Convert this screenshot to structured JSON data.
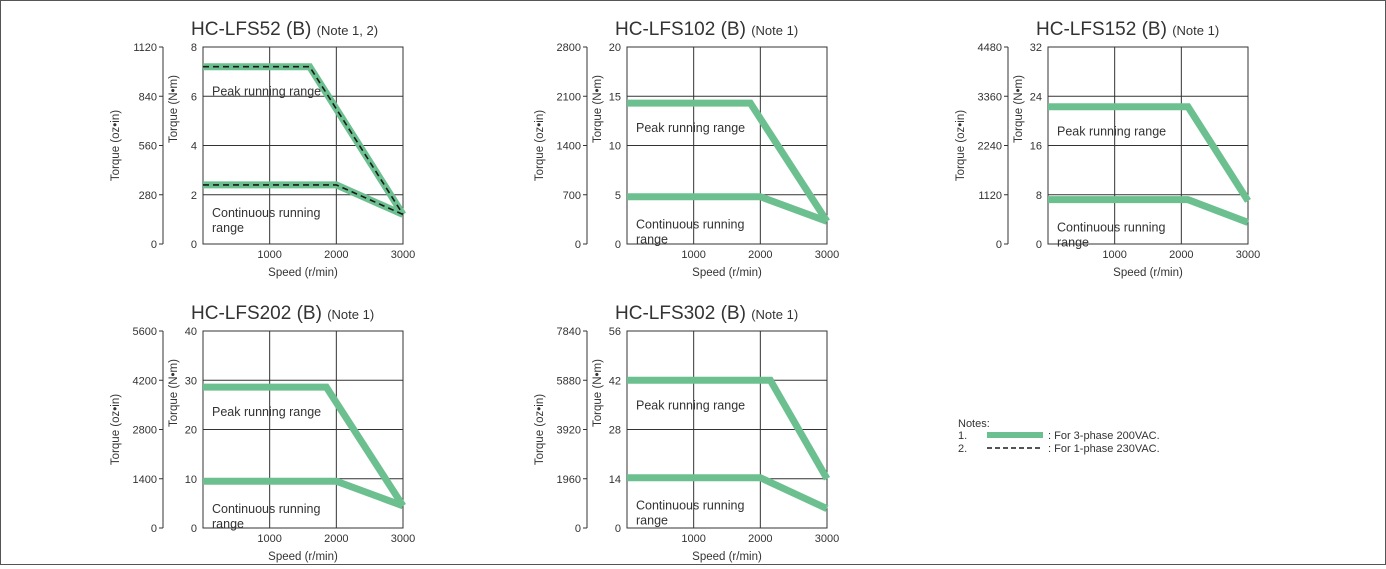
{
  "page": {
    "notes_title": "Notes:",
    "legend": [
      {
        "num": "1.",
        "style": "solid",
        "text": ": For 3-phase 200VAC."
      },
      {
        "num": "2.",
        "style": "dashed",
        "text": ": For 1-phase 230VAC."
      }
    ]
  },
  "colors": {
    "green": "#6cc08f",
    "dashed": "#1a1a1a",
    "grid": "#333333",
    "text": "#333333"
  },
  "chart_data": [
    {
      "type": "line",
      "title": "HC-LFS52 (B)",
      "note": "(Note 1, 2)",
      "xlabel": "Speed (r/min)",
      "ylabel_left": "Torque (oz•in)",
      "ylabel_right": "Torque (N•m)",
      "xlim": [
        0,
        3000
      ],
      "x_ticks": [
        1000,
        2000,
        3000
      ],
      "ylim_nm": [
        0,
        8
      ],
      "y_ticks_nm": [
        0,
        2,
        4,
        6,
        8
      ],
      "y_ticks_ozin": [
        0,
        280,
        560,
        840,
        1120
      ],
      "grid": true,
      "region_labels": {
        "peak": "Peak running range",
        "continuous": [
          "Continuous running",
          "range"
        ]
      },
      "series": [
        {
          "style": "solid",
          "x": [
            0,
            1600,
            3000
          ],
          "y": [
            7.2,
            7.2,
            1.2
          ]
        },
        {
          "style": "solid",
          "x": [
            0,
            2000,
            3000
          ],
          "y": [
            2.4,
            2.4,
            1.2
          ]
        },
        {
          "style": "dashed",
          "x": [
            0,
            1600,
            3000
          ],
          "y": [
            7.2,
            7.2,
            1.2
          ]
        },
        {
          "style": "dashed",
          "x": [
            0,
            2000,
            3000
          ],
          "y": [
            2.4,
            2.4,
            1.2
          ]
        }
      ]
    },
    {
      "type": "line",
      "title": "HC-LFS102 (B)",
      "note": "(Note 1)",
      "xlabel": "Speed (r/min)",
      "ylabel_left": "Torque (oz•in)",
      "ylabel_right": "Torque (N•m)",
      "xlim": [
        0,
        3000
      ],
      "x_ticks": [
        1000,
        2000,
        3000
      ],
      "ylim_nm": [
        0,
        20
      ],
      "y_ticks_nm": [
        0,
        5,
        10,
        15,
        20
      ],
      "y_ticks_ozin": [
        0,
        700,
        1400,
        2100,
        2800
      ],
      "grid": true,
      "region_labels": {
        "peak": "Peak running range",
        "continuous": [
          "Continuous running",
          "range"
        ]
      },
      "series": [
        {
          "style": "solid",
          "x": [
            0,
            1850,
            3000
          ],
          "y": [
            14.3,
            14.3,
            2.3
          ]
        },
        {
          "style": "solid",
          "x": [
            0,
            2000,
            3000
          ],
          "y": [
            4.8,
            4.8,
            2.3
          ]
        }
      ]
    },
    {
      "type": "line",
      "title": "HC-LFS152 (B)",
      "note": "(Note 1)",
      "xlabel": "Speed (r/min)",
      "ylabel_left": "Torque (oz•in)",
      "ylabel_right": "Torque (N•m)",
      "xlim": [
        0,
        3000
      ],
      "x_ticks": [
        1000,
        2000,
        3000
      ],
      "ylim_nm": [
        0,
        32
      ],
      "y_ticks_nm": [
        0,
        8,
        16,
        24,
        32
      ],
      "y_ticks_ozin": [
        0,
        1120,
        2240,
        3360,
        4480
      ],
      "grid": true,
      "region_labels": {
        "peak": "Peak running range",
        "continuous": [
          "Continuous running",
          "range"
        ]
      },
      "series": [
        {
          "style": "solid",
          "x": [
            0,
            2100,
            3000
          ],
          "y": [
            22.3,
            22.3,
            7.0
          ]
        },
        {
          "style": "solid",
          "x": [
            0,
            2100,
            3000
          ],
          "y": [
            7.2,
            7.2,
            3.5
          ]
        }
      ]
    },
    {
      "type": "line",
      "title": "HC-LFS202 (B)",
      "note": "(Note 1)",
      "xlabel": "Speed (r/min)",
      "ylabel_left": "Torque (oz•in)",
      "ylabel_right": "Torque (N•m)",
      "xlim": [
        0,
        3000
      ],
      "x_ticks": [
        1000,
        2000,
        3000
      ],
      "ylim_nm": [
        0,
        40
      ],
      "y_ticks_nm": [
        0,
        10,
        20,
        30,
        40
      ],
      "y_ticks_ozin": [
        0,
        1400,
        2800,
        4200,
        5600
      ],
      "grid": true,
      "region_labels": {
        "peak": "Peak running range",
        "continuous": [
          "Continuous running",
          "range"
        ]
      },
      "series": [
        {
          "style": "solid",
          "x": [
            0,
            1850,
            3000
          ],
          "y": [
            28.6,
            28.6,
            4.5
          ]
        },
        {
          "style": "solid",
          "x": [
            0,
            2000,
            3000
          ],
          "y": [
            9.5,
            9.5,
            4.5
          ]
        }
      ]
    },
    {
      "type": "line",
      "title": "HC-LFS302 (B)",
      "note": "(Note 1)",
      "xlabel": "Speed (r/min)",
      "ylabel_left": "Torque (oz•in)",
      "ylabel_right": "Torque (N•m)",
      "xlim": [
        0,
        3000
      ],
      "x_ticks": [
        1000,
        2000,
        3000
      ],
      "ylim_nm": [
        0,
        56
      ],
      "y_ticks_nm": [
        0,
        14,
        28,
        42,
        56
      ],
      "y_ticks_ozin": [
        0,
        1960,
        3920,
        5880,
        7840
      ],
      "grid": true,
      "region_labels": {
        "peak": "Peak running range",
        "continuous": [
          "Continuous running",
          "range"
        ]
      },
      "series": [
        {
          "style": "solid",
          "x": [
            0,
            2150,
            3000
          ],
          "y": [
            42.0,
            42.0,
            14.0
          ]
        },
        {
          "style": "solid",
          "x": [
            0,
            2000,
            3000
          ],
          "y": [
            14.3,
            14.3,
            5.5
          ]
        }
      ]
    }
  ]
}
